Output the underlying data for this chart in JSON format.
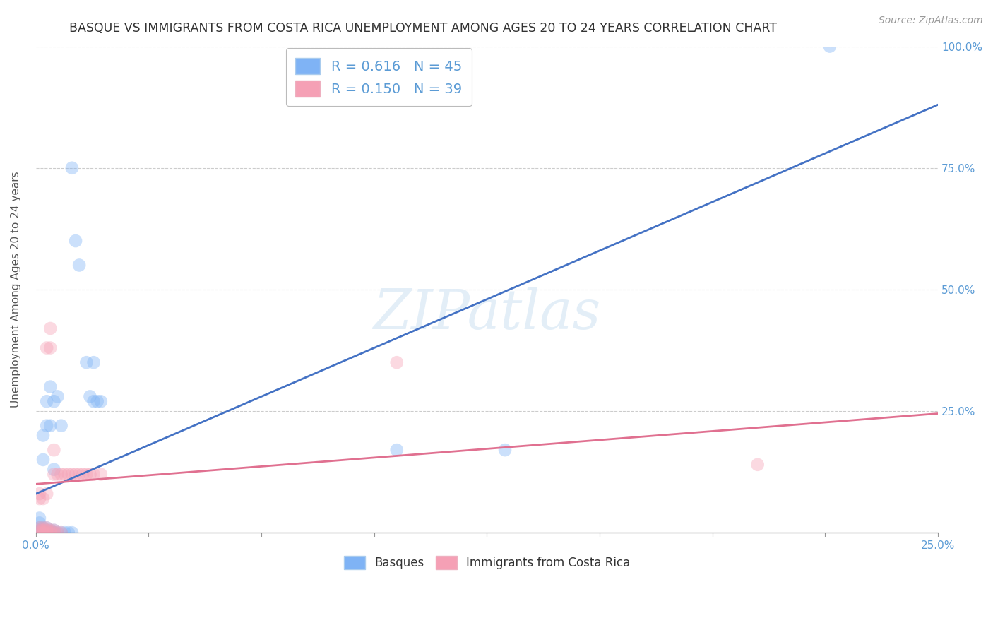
{
  "title": "BASQUE VS IMMIGRANTS FROM COSTA RICA UNEMPLOYMENT AMONG AGES 20 TO 24 YEARS CORRELATION CHART",
  "source": "Source: ZipAtlas.com",
  "ylabel_label": "Unemployment Among Ages 20 to 24 years",
  "xlim": [
    0.0,
    0.25
  ],
  "ylim": [
    0.0,
    1.0
  ],
  "xticks": [
    0.0,
    0.03125,
    0.0625,
    0.09375,
    0.125,
    0.15625,
    0.1875,
    0.21875,
    0.25
  ],
  "yticks": [
    0.0,
    0.25,
    0.5,
    0.75,
    1.0
  ],
  "ytick_labels": [
    "",
    "25.0%",
    "50.0%",
    "75.0%",
    "100.0%"
  ],
  "grid_color": "#cccccc",
  "background_color": "#ffffff",
  "watermark": "ZIPatlas",
  "blue_color": "#7fb3f5",
  "pink_color": "#f5a0b5",
  "blue_line_color": "#4472c4",
  "pink_line_color": "#e07090",
  "basque_label": "Basques",
  "immigrant_label": "Immigrants from Costa Rica",
  "blue_scatter": [
    [
      0.001,
      0.005
    ],
    [
      0.001,
      0.01
    ],
    [
      0.001,
      0.02
    ],
    [
      0.001,
      0.03
    ],
    [
      0.002,
      0.0
    ],
    [
      0.002,
      0.005
    ],
    [
      0.002,
      0.01
    ],
    [
      0.002,
      0.15
    ],
    [
      0.002,
      0.2
    ],
    [
      0.003,
      0.0
    ],
    [
      0.003,
      0.005
    ],
    [
      0.003,
      0.01
    ],
    [
      0.003,
      0.22
    ],
    [
      0.003,
      0.27
    ],
    [
      0.004,
      0.0
    ],
    [
      0.004,
      0.005
    ],
    [
      0.004,
      0.22
    ],
    [
      0.004,
      0.3
    ],
    [
      0.005,
      0.0
    ],
    [
      0.005,
      0.005
    ],
    [
      0.005,
      0.13
    ],
    [
      0.005,
      0.27
    ],
    [
      0.006,
      0.0
    ],
    [
      0.006,
      0.28
    ],
    [
      0.007,
      0.0
    ],
    [
      0.007,
      0.22
    ],
    [
      0.008,
      0.0
    ],
    [
      0.009,
      0.0
    ],
    [
      0.01,
      0.0
    ],
    [
      0.01,
      0.75
    ],
    [
      0.011,
      0.6
    ],
    [
      0.012,
      0.55
    ],
    [
      0.014,
      0.35
    ],
    [
      0.015,
      0.28
    ],
    [
      0.016,
      0.27
    ],
    [
      0.016,
      0.35
    ],
    [
      0.017,
      0.27
    ],
    [
      0.018,
      0.27
    ],
    [
      0.1,
      0.17
    ],
    [
      0.13,
      0.17
    ],
    [
      0.22,
      1.0
    ],
    [
      0.001,
      0.0
    ],
    [
      0.002,
      0.0
    ],
    [
      0.003,
      0.0
    ],
    [
      0.004,
      0.0
    ],
    [
      0.005,
      0.0
    ]
  ],
  "pink_scatter": [
    [
      0.001,
      0.005
    ],
    [
      0.001,
      0.01
    ],
    [
      0.001,
      0.07
    ],
    [
      0.001,
      0.08
    ],
    [
      0.002,
      0.0
    ],
    [
      0.002,
      0.005
    ],
    [
      0.002,
      0.01
    ],
    [
      0.002,
      0.07
    ],
    [
      0.003,
      0.0
    ],
    [
      0.003,
      0.005
    ],
    [
      0.003,
      0.01
    ],
    [
      0.003,
      0.08
    ],
    [
      0.003,
      0.38
    ],
    [
      0.004,
      0.0
    ],
    [
      0.004,
      0.005
    ],
    [
      0.004,
      0.38
    ],
    [
      0.004,
      0.42
    ],
    [
      0.005,
      0.0
    ],
    [
      0.005,
      0.005
    ],
    [
      0.005,
      0.12
    ],
    [
      0.005,
      0.17
    ],
    [
      0.006,
      0.0
    ],
    [
      0.006,
      0.12
    ],
    [
      0.007,
      0.0
    ],
    [
      0.007,
      0.12
    ],
    [
      0.008,
      0.12
    ],
    [
      0.009,
      0.12
    ],
    [
      0.01,
      0.12
    ],
    [
      0.011,
      0.12
    ],
    [
      0.012,
      0.12
    ],
    [
      0.013,
      0.12
    ],
    [
      0.014,
      0.12
    ],
    [
      0.015,
      0.12
    ],
    [
      0.016,
      0.12
    ],
    [
      0.018,
      0.12
    ],
    [
      0.1,
      0.35
    ],
    [
      0.2,
      0.14
    ],
    [
      0.001,
      0.0
    ],
    [
      0.002,
      0.0
    ]
  ],
  "blue_line_x": [
    0.0,
    0.25
  ],
  "blue_line_y": [
    0.08,
    0.88
  ],
  "pink_line_x": [
    0.0,
    0.25
  ],
  "pink_line_y": [
    0.1,
    0.245
  ],
  "marker_size": 180,
  "marker_alpha": 0.4,
  "title_fontsize": 12.5,
  "axis_label_fontsize": 11,
  "tick_fontsize": 11,
  "source_fontsize": 10
}
